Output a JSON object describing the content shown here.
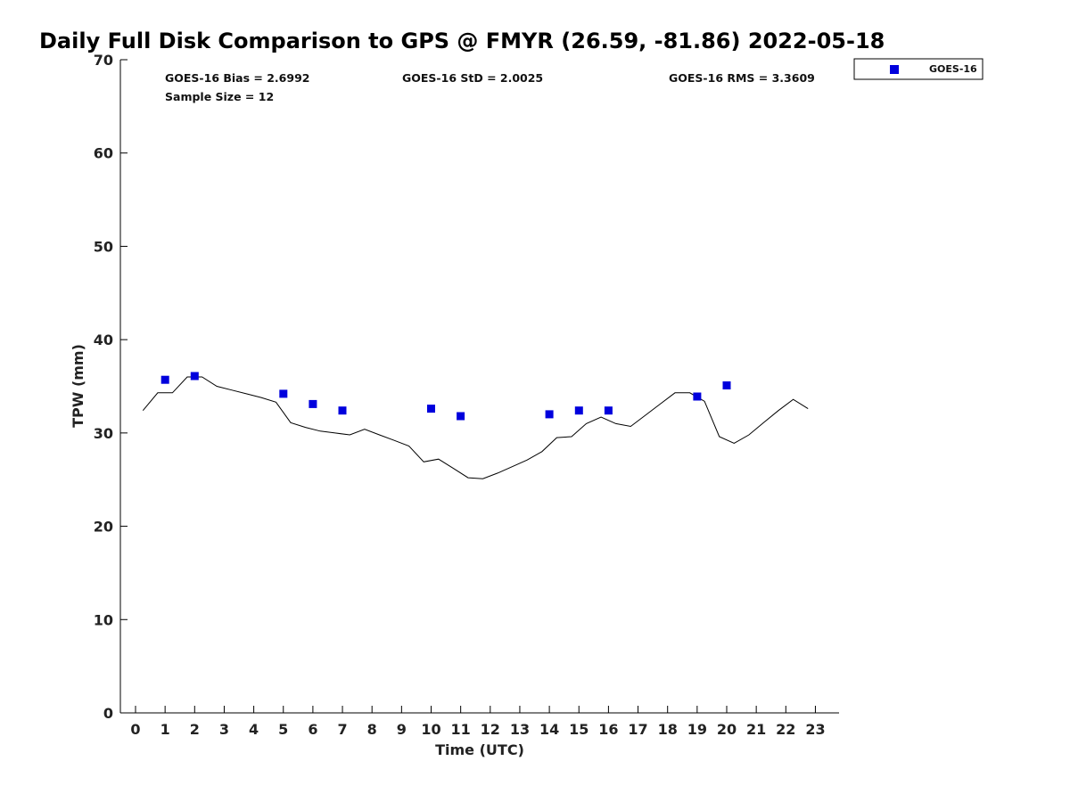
{
  "chart_data": {
    "type": "scatter",
    "title": "Daily Full Disk Comparison to GPS @ FMYR (26.59, -81.86) 2022-05-18",
    "xlabel": "Time (UTC)",
    "ylabel": "TPW (mm)",
    "xlim": [
      -0.5,
      23.8
    ],
    "ylim": [
      0,
      70
    ],
    "xticks": [
      0,
      1,
      2,
      3,
      4,
      5,
      6,
      7,
      8,
      9,
      10,
      11,
      12,
      13,
      14,
      15,
      16,
      17,
      18,
      19,
      20,
      21,
      22,
      23
    ],
    "yticks": [
      0,
      10,
      20,
      30,
      40,
      50,
      60,
      70
    ],
    "grid": false,
    "legend_position": "top-right, outside plot",
    "stats": {
      "bias": "GOES-16 Bias = 2.6992",
      "std": "GOES-16 StD = 2.0025",
      "rms": "GOES-16 RMS = 3.3609",
      "sample": "Sample Size = 12"
    },
    "series": [
      {
        "name": "GOES-16",
        "kind": "scatter",
        "marker": "square",
        "color": "#0000dd",
        "x": [
          1,
          2,
          5,
          6,
          7,
          10,
          11,
          14,
          15,
          16,
          19,
          20
        ],
        "y": [
          35.7,
          36.1,
          34.2,
          33.1,
          32.4,
          32.6,
          31.8,
          32.0,
          32.4,
          32.4,
          33.9,
          35.1
        ]
      },
      {
        "kind": "line",
        "color": "#000000",
        "x": [
          0.25,
          0.75,
          1.25,
          1.75,
          2.25,
          2.75,
          3.25,
          3.75,
          4.25,
          4.75,
          5.25,
          5.75,
          6.25,
          6.75,
          7.25,
          7.75,
          8.25,
          8.75,
          9.25,
          9.75,
          10.25,
          10.75,
          11.25,
          11.75,
          12.25,
          12.75,
          13.25,
          13.75,
          14.25,
          14.75,
          15.25,
          15.75,
          16.25,
          16.75,
          17.25,
          17.75,
          18.25,
          18.75,
          19.25,
          19.75,
          20.25,
          20.75,
          21.25,
          21.75,
          22.25,
          22.75
        ],
        "y": [
          32.4,
          34.3,
          34.3,
          36.0,
          36.0,
          35.0,
          34.6,
          34.2,
          33.8,
          33.3,
          31.1,
          30.6,
          30.2,
          30.0,
          29.8,
          30.4,
          29.8,
          29.2,
          28.6,
          26.9,
          27.2,
          26.2,
          25.2,
          25.1,
          25.7,
          26.4,
          27.1,
          28.0,
          29.5,
          29.6,
          31.0,
          31.7,
          31.0,
          30.7,
          31.9,
          33.1,
          34.3,
          34.3,
          33.4,
          29.6,
          28.9,
          29.8,
          31.1,
          32.4,
          33.6,
          32.6
        ]
      }
    ]
  }
}
